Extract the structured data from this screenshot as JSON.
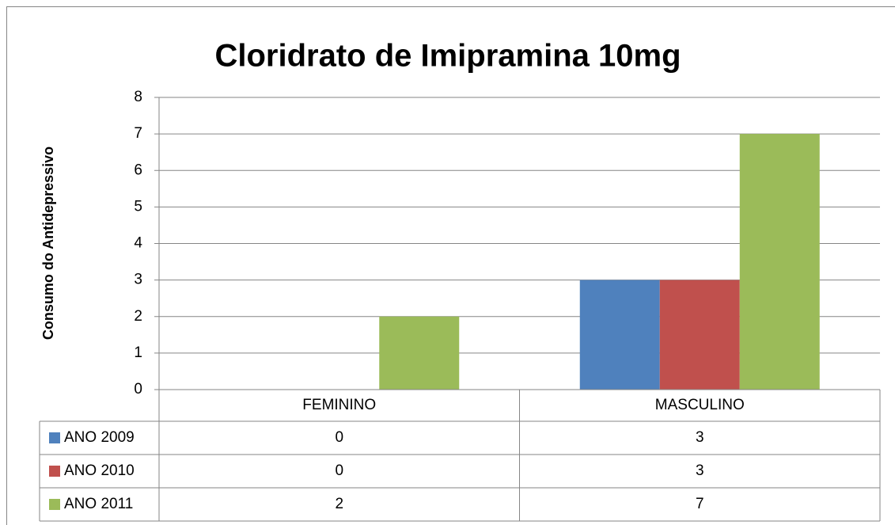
{
  "chart_data": {
    "type": "bar",
    "title": "Cloridrato de Imipramina 10mg",
    "y_label": "Consumo do Antidepressivo",
    "categories": [
      "FEMININO",
      "MASCULINO"
    ],
    "series": [
      {
        "name": "ANO 2009",
        "color": "#4f81bd",
        "values": [
          0,
          3
        ]
      },
      {
        "name": "ANO 2010",
        "color": "#c0504d",
        "values": [
          0,
          3
        ]
      },
      {
        "name": "ANO 2011",
        "color": "#9bbb59",
        "values": [
          2,
          7
        ]
      }
    ],
    "ylim": [
      0,
      8
    ],
    "yticks": [
      0,
      1,
      2,
      3,
      4,
      5,
      6,
      7,
      8
    ],
    "grid": true
  }
}
